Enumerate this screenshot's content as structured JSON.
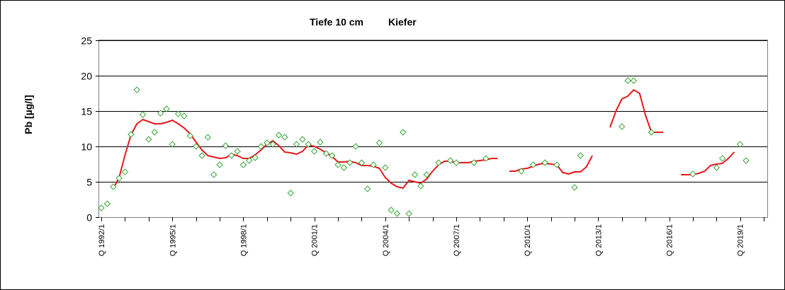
{
  "chart_data": {
    "type": "scatter",
    "title_left": "Tiefe  10 cm",
    "title_right": "Kiefer",
    "ylabel": "Pb [µg/l]",
    "xlabel": "",
    "ylim": [
      0,
      25
    ],
    "yticks": [
      "0",
      "5",
      "10",
      "15",
      "20",
      "25"
    ],
    "x_tick_labels": [
      "Q 1992/1",
      "Q 1995/1",
      "Q 1998/1",
      "Q 2001/1",
      "Q 2004/1",
      "Q 2007/1",
      "Q 2010/1",
      "Q 2013/1",
      "Q 2016/1",
      "Q 2019/1"
    ],
    "x_range_quarters": [
      0,
      112
    ],
    "grid": "horizontal",
    "colors": {
      "points": "#2ca02c",
      "line": "#e8191b"
    },
    "series": [
      {
        "kind": "points",
        "points": [
          [
            0,
            1.3
          ],
          [
            1,
            1.9
          ],
          [
            2,
            4.3
          ],
          [
            3,
            5.5
          ],
          [
            4,
            6.4
          ],
          [
            5,
            11.7
          ],
          [
            6,
            18.0
          ],
          [
            7,
            14.5
          ],
          [
            8,
            11.0
          ],
          [
            9,
            12.0
          ],
          [
            10,
            14.7
          ],
          [
            11,
            15.3
          ],
          [
            12,
            10.3
          ],
          [
            13,
            14.6
          ],
          [
            14,
            14.3
          ],
          [
            15,
            11.5
          ],
          [
            16,
            10.0
          ],
          [
            17,
            8.7
          ],
          [
            18,
            11.3
          ],
          [
            19,
            6.0
          ],
          [
            20,
            7.4
          ],
          [
            21,
            10.1
          ],
          [
            22,
            8.7
          ],
          [
            23,
            9.3
          ],
          [
            24,
            7.4
          ],
          [
            25,
            8.0
          ],
          [
            26,
            8.4
          ],
          [
            27,
            10.0
          ],
          [
            28,
            10.5
          ],
          [
            29,
            10.3
          ],
          [
            30,
            11.6
          ],
          [
            31,
            11.3
          ],
          [
            32,
            3.4
          ],
          [
            33,
            10.3
          ],
          [
            34,
            11.0
          ],
          [
            35,
            10.3
          ],
          [
            36,
            9.3
          ],
          [
            37,
            10.6
          ],
          [
            38,
            9.0
          ],
          [
            39,
            8.7
          ],
          [
            40,
            7.4
          ],
          [
            41,
            7.0
          ],
          [
            42,
            7.7
          ],
          [
            43,
            10.0
          ],
          [
            44,
            7.7
          ],
          [
            45,
            4.0
          ],
          [
            46,
            7.4
          ],
          [
            47,
            10.5
          ],
          [
            48,
            7.0
          ],
          [
            49,
            1.0
          ],
          [
            50,
            0.5
          ],
          [
            51,
            12.0
          ],
          [
            52,
            0.5
          ],
          [
            53,
            6.0
          ],
          [
            54,
            4.4
          ],
          [
            55,
            6.0
          ],
          [
            57,
            7.7
          ],
          [
            59,
            8.0
          ],
          [
            60,
            7.7
          ],
          [
            63,
            7.7
          ],
          [
            65,
            8.3
          ],
          [
            71,
            6.5
          ],
          [
            73,
            7.4
          ],
          [
            75,
            7.7
          ],
          [
            77,
            7.4
          ],
          [
            80,
            4.2
          ],
          [
            81,
            8.7
          ],
          [
            88,
            12.8
          ],
          [
            89,
            19.3
          ],
          [
            90,
            19.3
          ],
          [
            93,
            12.0
          ],
          [
            100,
            6.1
          ],
          [
            104,
            7.0
          ],
          [
            105,
            8.3
          ],
          [
            108,
            10.3
          ],
          [
            109,
            8.0
          ]
        ]
      },
      {
        "kind": "line",
        "segments": [
          [
            [
              2,
              4.0
            ],
            [
              3,
              5.6
            ],
            [
              4,
              8.8
            ],
            [
              5,
              11.6
            ],
            [
              6,
              13.2
            ],
            [
              7,
              13.8
            ],
            [
              8,
              13.5
            ],
            [
              9,
              13.2
            ],
            [
              10,
              13.2
            ],
            [
              11,
              13.4
            ],
            [
              12,
              13.7
            ],
            [
              13,
              13.2
            ],
            [
              14,
              12.6
            ],
            [
              15,
              11.8
            ],
            [
              16,
              10.6
            ],
            [
              17,
              9.5
            ],
            [
              18,
              8.7
            ],
            [
              19,
              8.5
            ],
            [
              20,
              8.3
            ],
            [
              21,
              8.4
            ],
            [
              22,
              8.9
            ],
            [
              23,
              8.7
            ],
            [
              24,
              8.3
            ],
            [
              25,
              8.3
            ],
            [
              26,
              8.8
            ],
            [
              27,
              9.5
            ],
            [
              28,
              10.3
            ],
            [
              29,
              10.8
            ],
            [
              30,
              10.1
            ],
            [
              31,
              9.2
            ],
            [
              32,
              9.1
            ],
            [
              33,
              8.9
            ],
            [
              34,
              9.3
            ],
            [
              35,
              10.2
            ],
            [
              36,
              10.0
            ],
            [
              37,
              9.6
            ],
            [
              38,
              9.1
            ],
            [
              39,
              8.6
            ],
            [
              40,
              7.8
            ],
            [
              41,
              7.8
            ],
            [
              42,
              7.9
            ],
            [
              43,
              7.7
            ],
            [
              44,
              7.3
            ],
            [
              45,
              7.3
            ],
            [
              46,
              7.2
            ],
            [
              47,
              6.9
            ],
            [
              48,
              5.6
            ],
            [
              49,
              4.8
            ],
            [
              50,
              4.3
            ],
            [
              51,
              4.1
            ],
            [
              52,
              5.2
            ],
            [
              53,
              5.0
            ],
            [
              54,
              4.8
            ],
            [
              55,
              5.4
            ],
            [
              56,
              6.5
            ],
            [
              57,
              7.4
            ],
            [
              58,
              7.9
            ],
            [
              59,
              7.9
            ],
            [
              60,
              7.7
            ],
            [
              61,
              7.7
            ],
            [
              62,
              7.7
            ],
            [
              63,
              7.9
            ],
            [
              64,
              8.0
            ],
            [
              65,
              8.1
            ],
            [
              66,
              8.3
            ],
            [
              67,
              8.3
            ]
          ],
          [
            [
              69,
              6.5
            ],
            [
              70,
              6.5
            ],
            [
              71,
              6.8
            ],
            [
              72,
              6.9
            ],
            [
              73,
              7.2
            ],
            [
              74,
              7.5
            ],
            [
              75,
              7.6
            ],
            [
              76,
              7.5
            ],
            [
              77,
              7.4
            ],
            [
              78,
              6.3
            ],
            [
              79,
              6.1
            ],
            [
              80,
              6.4
            ],
            [
              81,
              6.4
            ],
            [
              82,
              7.1
            ],
            [
              83,
              8.7
            ]
          ],
          [
            [
              86,
              12.7
            ],
            [
              87,
              15.0
            ],
            [
              88,
              16.7
            ],
            [
              89,
              17.1
            ],
            [
              90,
              18.0
            ],
            [
              91,
              17.5
            ],
            [
              92,
              14.4
            ],
            [
              93,
              12.0
            ],
            [
              94,
              12.0
            ],
            [
              95,
              12.0
            ]
          ],
          [
            [
              98,
              6.0
            ],
            [
              99,
              6.0
            ],
            [
              100,
              6.0
            ],
            [
              101,
              6.2
            ],
            [
              102,
              6.5
            ],
            [
              103,
              7.3
            ],
            [
              104,
              7.5
            ],
            [
              105,
              7.6
            ],
            [
              106,
              8.3
            ],
            [
              107,
              9.2
            ]
          ]
        ]
      }
    ]
  }
}
